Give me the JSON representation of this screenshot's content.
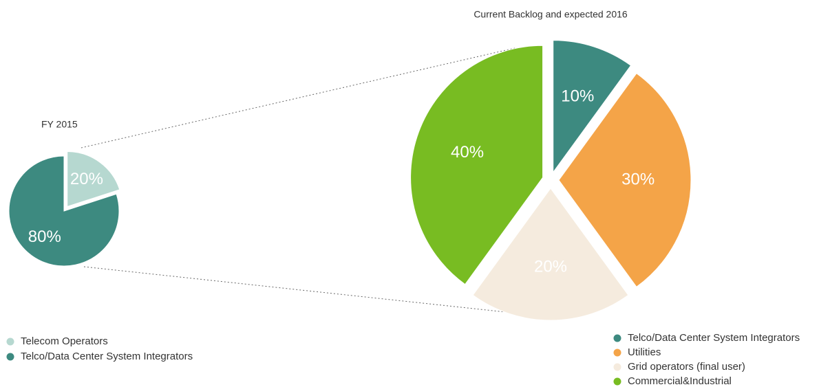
{
  "chart_data": [
    {
      "type": "pie",
      "title": "FY 2015",
      "categories": [
        "Telecom Operators",
        "Telco/Data Center System Integrators"
      ],
      "values": [
        20,
        80
      ],
      "value_labels": [
        "20%",
        "80%"
      ],
      "colors": [
        "#b6d8d0",
        "#3d8a80"
      ]
    },
    {
      "type": "pie",
      "title": "Current Backlog and expected 2016",
      "categories": [
        "Telco/Data Center System Integrators",
        "Utilities",
        "Grid operators (final user)",
        "Commercial&Industrial"
      ],
      "values": [
        10,
        30,
        20,
        40
      ],
      "value_labels": [
        "10%",
        "30%",
        "20%",
        "40%"
      ],
      "colors": [
        "#3d8a80",
        "#f4a448",
        "#f5ebde",
        "#78bc22"
      ]
    }
  ]
}
